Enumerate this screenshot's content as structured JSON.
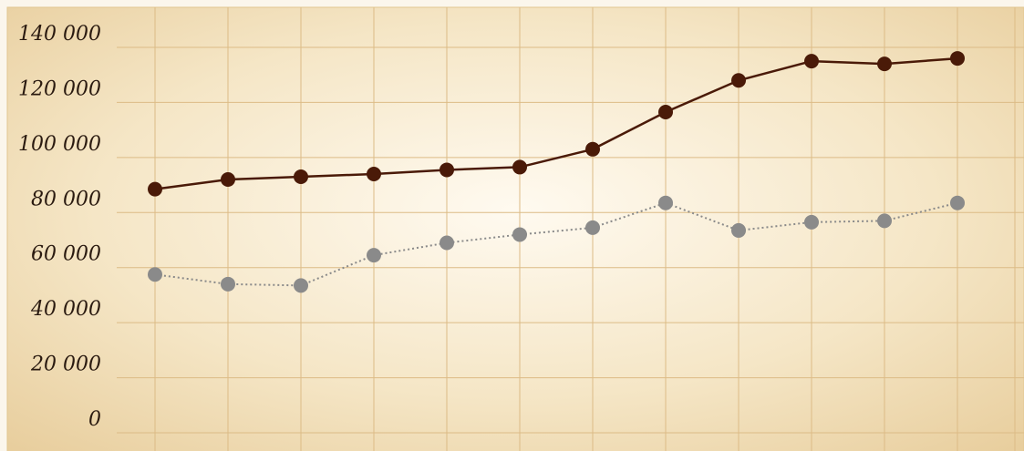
{
  "chart_data": {
    "type": "line",
    "title": "",
    "xlabel": "",
    "ylabel": "",
    "ylim": [
      0,
      140000
    ],
    "y_ticks": [
      0,
      20000,
      40000,
      60000,
      80000,
      100000,
      120000,
      140000
    ],
    "y_tick_labels": [
      "0",
      "20 000",
      "40 000",
      "60 000",
      "80 000",
      "100 000",
      "120 000",
      "140 000"
    ],
    "x": [
      1,
      2,
      3,
      4,
      5,
      6,
      7,
      8,
      9,
      10,
      11,
      12
    ],
    "grid": true,
    "legend": "none",
    "series": [
      {
        "values": [
          88500,
          92000,
          93000,
          94000,
          95500,
          96500,
          103000,
          116500,
          128000,
          135000,
          134000,
          136000
        ],
        "color": "#4a1a08",
        "line_style": "solid"
      },
      {
        "values": [
          57500,
          54000,
          53500,
          64500,
          69000,
          72000,
          74500,
          83500,
          73500,
          76500,
          77000,
          83500
        ],
        "color": "#8a8a8a",
        "line_style": "dotted"
      }
    ]
  }
}
